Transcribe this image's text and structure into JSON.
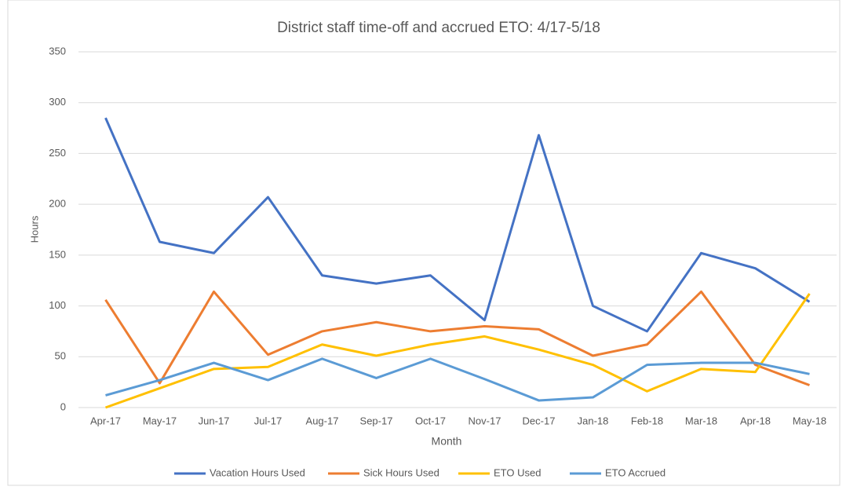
{
  "chart_data": {
    "type": "line",
    "title": "District staff time-off and accrued ETO: 4/17-5/18",
    "x_label": "Month",
    "y_label": "Hours",
    "categories": [
      "Apr-17",
      "May-17",
      "Jun-17",
      "Jul-17",
      "Aug-17",
      "Sep-17",
      "Oct-17",
      "Nov-17",
      "Dec-17",
      "Jan-18",
      "Feb-18",
      "Mar-18",
      "Apr-18",
      "May-18"
    ],
    "series": [
      {
        "name": "Vacation Hours Used",
        "color": "#4472c4",
        "values": [
          285,
          163,
          152,
          207,
          130,
          122,
          130,
          86,
          268,
          100,
          75,
          152,
          137,
          104
        ]
      },
      {
        "name": "Sick Hours Used",
        "color": "#ed7d31",
        "values": [
          106,
          24,
          114,
          52,
          75,
          84,
          75,
          80,
          77,
          51,
          62,
          114,
          42,
          22
        ]
      },
      {
        "name": "ETO Used",
        "color": "#ffc000",
        "values": [
          0,
          19,
          38,
          40,
          62,
          51,
          62,
          70,
          57,
          42,
          16,
          38,
          35,
          112
        ]
      },
      {
        "name": "ETO Accrued",
        "color": "#5b9bd5",
        "values": [
          12,
          27,
          44,
          27,
          48,
          29,
          48,
          28,
          7,
          10,
          42,
          44,
          44,
          33
        ]
      }
    ],
    "ylim": [
      0,
      350
    ],
    "yticks": [
      0,
      50,
      100,
      150,
      200,
      250,
      300,
      350
    ],
    "grid": true,
    "legend": "bottom"
  }
}
